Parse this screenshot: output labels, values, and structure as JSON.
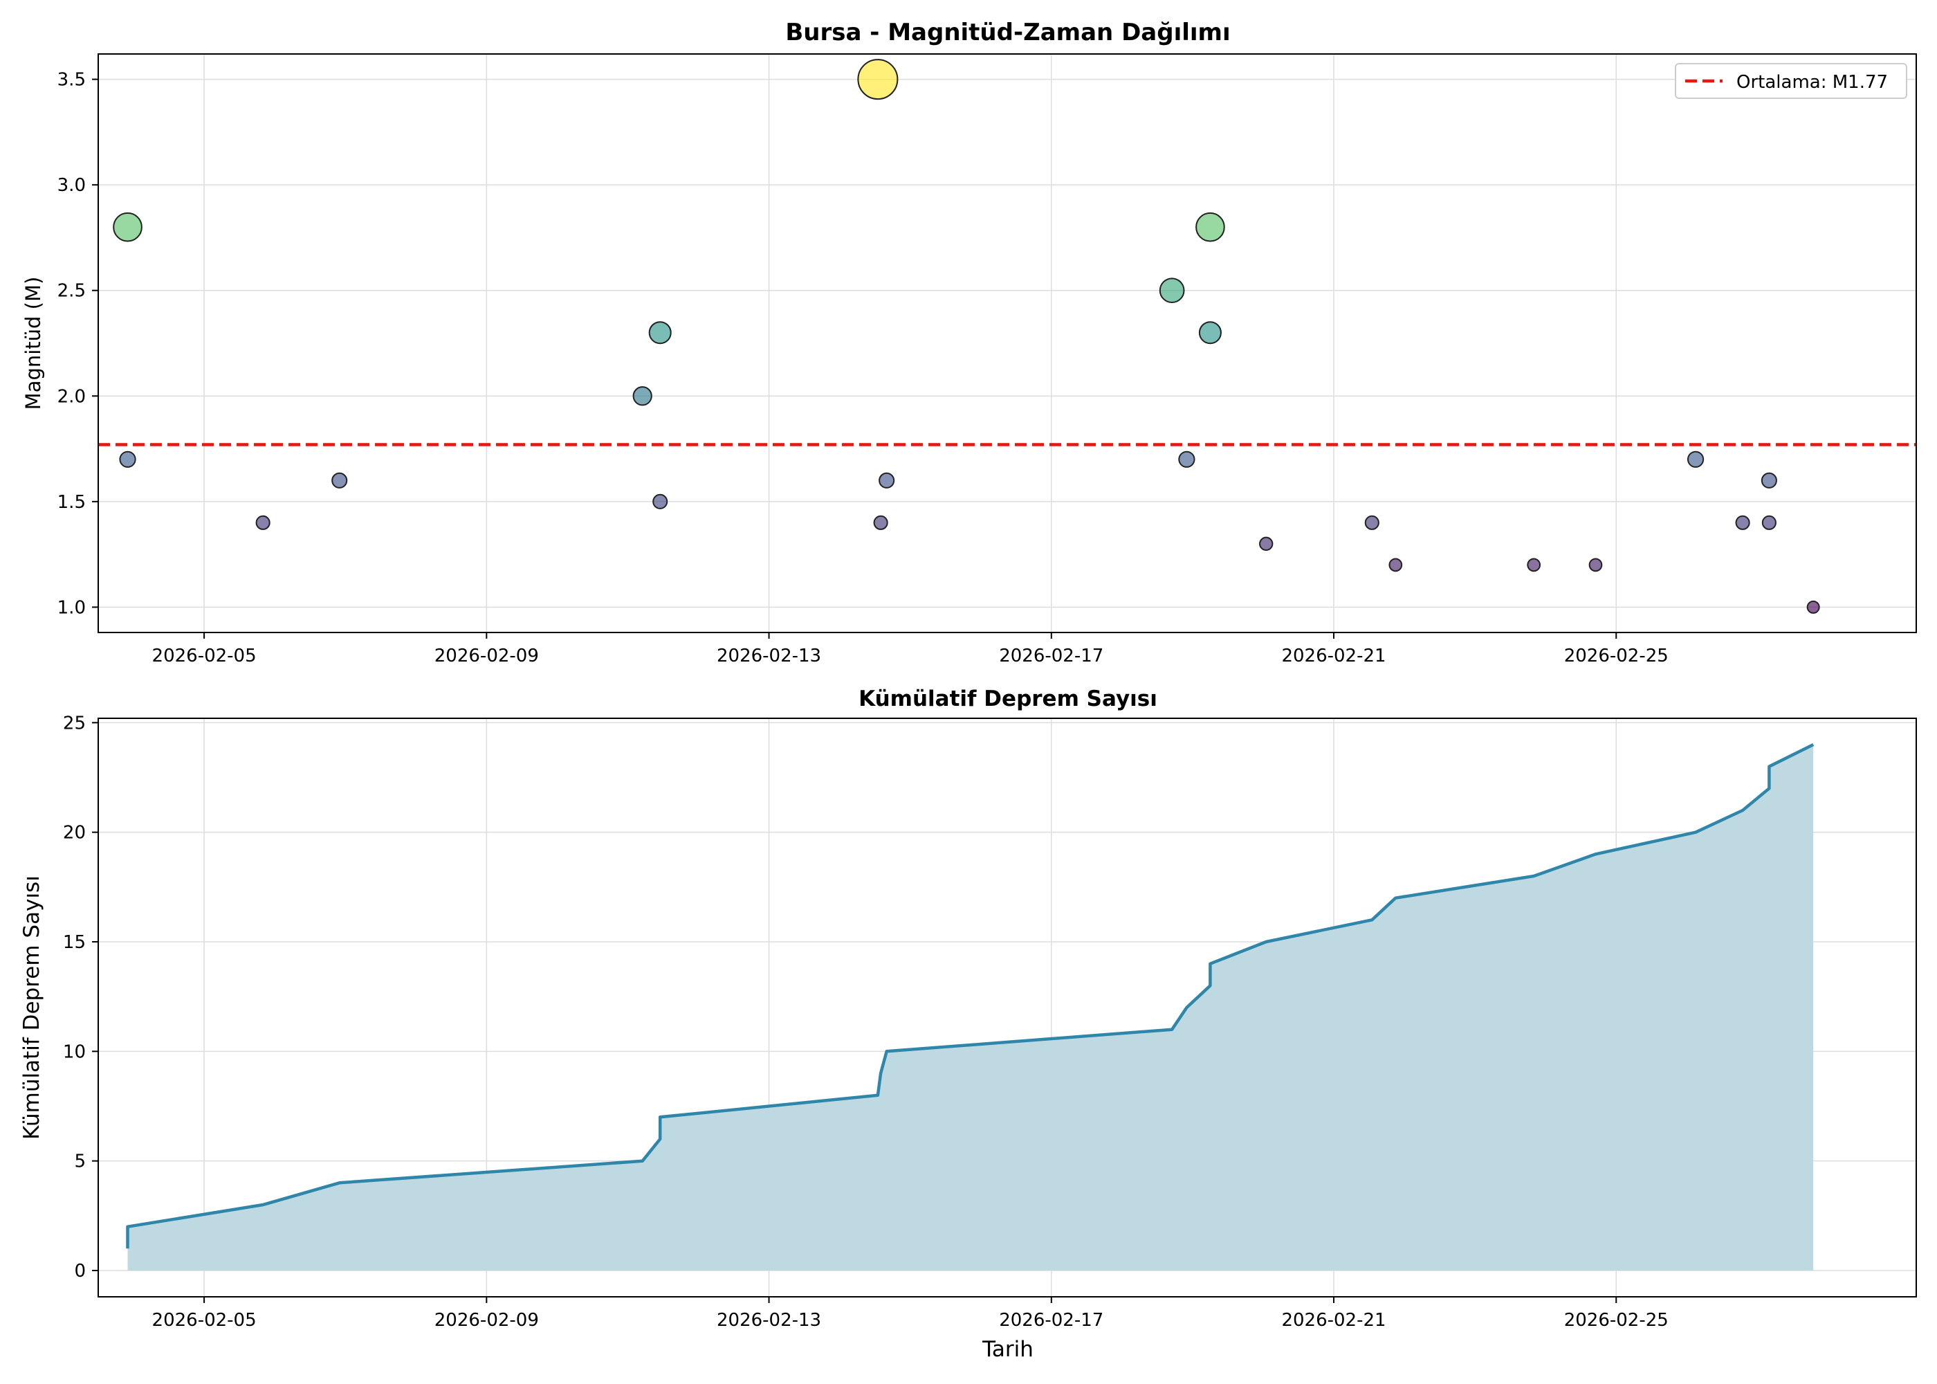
{
  "chart_data": [
    {
      "type": "scatter",
      "title": "Bursa - Magnitüd-Zaman Dağılımı",
      "xlabel": "",
      "ylabel": "Magnitüd (M)",
      "xlim": [
        "2026-02-03 12:00",
        "2026-02-29 06:00"
      ],
      "ylim": [
        0.88,
        3.62
      ],
      "x_ticks": [
        "2026-02-05",
        "2026-02-09",
        "2026-02-13",
        "2026-02-17",
        "2026-02-21",
        "2026-02-25"
      ],
      "y_ticks": [
        1.0,
        1.5,
        2.0,
        2.5,
        3.0,
        3.5
      ],
      "grid": true,
      "legend": {
        "position": "top-right",
        "entries": [
          "Ortalama: M1.77"
        ]
      },
      "reference_line": {
        "label": "Ortalama: M1.77",
        "value": 1.77,
        "color": "#e8170f",
        "style": "dashed"
      },
      "color_scale": "viridis",
      "points": [
        {
          "x": "2026-02-03 22:00",
          "y": 1.7
        },
        {
          "x": "2026-02-03 22:00",
          "y": 2.8
        },
        {
          "x": "2026-02-05 20:00",
          "y": 1.4
        },
        {
          "x": "2026-02-06 22:00",
          "y": 1.6
        },
        {
          "x": "2026-02-11 05:00",
          "y": 2.0
        },
        {
          "x": "2026-02-11 11:00",
          "y": 2.3
        },
        {
          "x": "2026-02-11 11:00",
          "y": 1.5
        },
        {
          "x": "2026-02-14 13:00",
          "y": 3.5
        },
        {
          "x": "2026-02-14 14:00",
          "y": 1.4
        },
        {
          "x": "2026-02-14 16:00",
          "y": 1.6
        },
        {
          "x": "2026-02-18 17:00",
          "y": 2.5
        },
        {
          "x": "2026-02-18 22:00",
          "y": 1.7
        },
        {
          "x": "2026-02-19 06:00",
          "y": 2.8
        },
        {
          "x": "2026-02-19 06:00",
          "y": 2.3
        },
        {
          "x": "2026-02-20 01:00",
          "y": 1.3
        },
        {
          "x": "2026-02-21 13:00",
          "y": 1.4
        },
        {
          "x": "2026-02-21 21:00",
          "y": 1.2
        },
        {
          "x": "2026-02-23 20:00",
          "y": 1.2
        },
        {
          "x": "2026-02-24 17:00",
          "y": 1.2
        },
        {
          "x": "2026-02-26 03:00",
          "y": 1.7
        },
        {
          "x": "2026-02-26 19:00",
          "y": 1.4
        },
        {
          "x": "2026-02-27 04:00",
          "y": 1.6
        },
        {
          "x": "2026-02-27 04:00",
          "y": 1.4
        },
        {
          "x": "2026-02-27 19:00",
          "y": 1.0
        }
      ]
    },
    {
      "type": "area",
      "title": "Kümülatif Deprem Sayısı",
      "xlabel": "Tarih",
      "ylabel": "Kümülatif Deprem Sayısı",
      "xlim": [
        "2026-02-03 12:00",
        "2026-02-29 06:00"
      ],
      "ylim": [
        -1.2,
        25.2
      ],
      "x_ticks": [
        "2026-02-05",
        "2026-02-09",
        "2026-02-13",
        "2026-02-17",
        "2026-02-21",
        "2026-02-25"
      ],
      "y_ticks": [
        0,
        5,
        10,
        15,
        20,
        25
      ],
      "grid": true,
      "line_color": "#2e86ab",
      "fill_color": "#bfd9e3",
      "x": [
        "2026-02-03 22:00",
        "2026-02-03 22:00",
        "2026-02-05 20:00",
        "2026-02-06 22:00",
        "2026-02-11 05:00",
        "2026-02-11 11:00",
        "2026-02-11 11:00",
        "2026-02-14 13:00",
        "2026-02-14 14:00",
        "2026-02-14 16:00",
        "2026-02-18 17:00",
        "2026-02-18 22:00",
        "2026-02-19 06:00",
        "2026-02-19 06:00",
        "2026-02-20 01:00",
        "2026-02-21 13:00",
        "2026-02-21 21:00",
        "2026-02-23 20:00",
        "2026-02-24 17:00",
        "2026-02-26 03:00",
        "2026-02-26 19:00",
        "2026-02-27 04:00",
        "2026-02-27 04:00",
        "2026-02-27 19:00"
      ],
      "values": [
        1,
        2,
        3,
        4,
        5,
        6,
        7,
        8,
        9,
        10,
        11,
        12,
        13,
        14,
        15,
        16,
        17,
        18,
        19,
        20,
        21,
        22,
        23,
        24
      ]
    }
  ]
}
